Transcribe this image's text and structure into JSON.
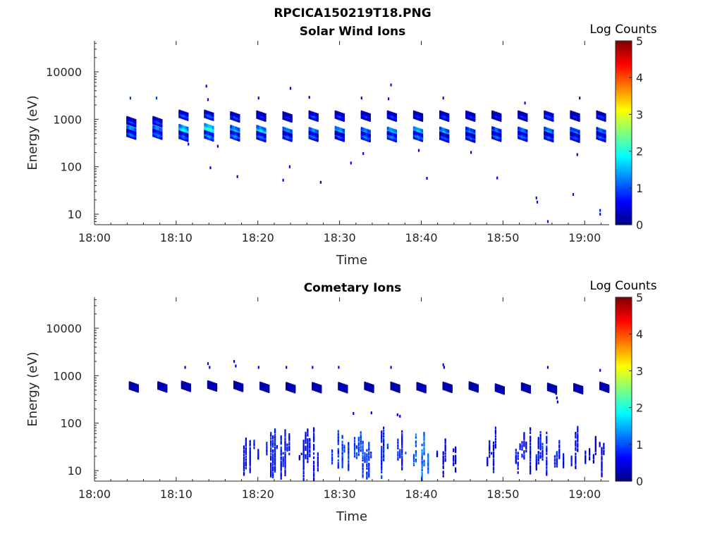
{
  "figure_title": "RPCICA150219T18.PNG",
  "colors": {
    "axis": "#262626",
    "colormap": [
      "#00007f",
      "#0000ff",
      "#007fff",
      "#00ffff",
      "#7fff7f",
      "#ffff00",
      "#ff7f00",
      "#ff0000",
      "#7f0000"
    ]
  },
  "chart_data": [
    {
      "type": "heatmap",
      "title": "Solar Wind Ions",
      "xlabel": "Time",
      "ylabel": "Energy (eV)",
      "x_tick_labels": [
        "18:00",
        "18:10",
        "18:20",
        "18:30",
        "18:40",
        "18:50",
        "19:00"
      ],
      "x_ticks_min": [
        0,
        10,
        20,
        30,
        40,
        50,
        60
      ],
      "xlim_min": [
        0,
        63
      ],
      "y_tick_labels": [
        "10",
        "100",
        "1000",
        "10000"
      ],
      "y_ticks": [
        10,
        100,
        1000,
        10000
      ],
      "ylim": [
        6,
        45000
      ],
      "y_scale": "log",
      "colorbar": {
        "label": "Log Counts",
        "range": [
          0,
          5
        ],
        "tick_labels": [
          "0",
          "1",
          "2",
          "3",
          "4",
          "5"
        ]
      },
      "scans": [
        {
          "t": 4.3,
          "bursts": [
            [
              950,
              1.1
            ],
            [
              620,
              2.2
            ],
            [
              520,
              1.4
            ]
          ]
        },
        {
          "t": 7.5,
          "bursts": [
            [
              950,
              1.2
            ],
            [
              620,
              2.1
            ],
            [
              520,
              1.5
            ]
          ]
        },
        {
          "t": 10.7,
          "bursts": [
            [
              1300,
              1.3
            ],
            [
              650,
              2.2
            ],
            [
              470,
              1.4
            ]
          ]
        },
        {
          "t": 13.8,
          "bursts": [
            [
              1300,
              1.3
            ],
            [
              680,
              2.4
            ],
            [
              480,
              1.6
            ]
          ]
        },
        {
          "t": 17.0,
          "bursts": [
            [
              1200,
              1.2
            ],
            [
              620,
              2.0
            ],
            [
              480,
              1.5
            ]
          ]
        },
        {
          "t": 20.2,
          "bursts": [
            [
              1250,
              1.0
            ],
            [
              620,
              2.1
            ],
            [
              460,
              1.4
            ]
          ]
        },
        {
          "t": 23.4,
          "bursts": [
            [
              1200,
              0.9
            ],
            [
              570,
              2.0
            ],
            [
              470,
              1.3
            ]
          ]
        },
        {
          "t": 26.6,
          "bursts": [
            [
              1250,
              1.2
            ],
            [
              560,
              2.1
            ],
            [
              470,
              1.4
            ]
          ]
        },
        {
          "t": 29.8,
          "bursts": [
            [
              1250,
              1.1
            ],
            [
              590,
              2.1
            ],
            [
              470,
              1.3
            ]
          ]
        },
        {
          "t": 33.0,
          "bursts": [
            [
              1250,
              1.0
            ],
            [
              560,
              2.0
            ],
            [
              460,
              1.5
            ]
          ]
        },
        {
          "t": 36.2,
          "bursts": [
            [
              1250,
              1.1
            ],
            [
              570,
              2.2
            ],
            [
              460,
              1.5
            ]
          ]
        },
        {
          "t": 39.4,
          "bursts": [
            [
              1250,
              0.9
            ],
            [
              580,
              2.3
            ],
            [
              470,
              1.5
            ]
          ]
        },
        {
          "t": 42.6,
          "bursts": [
            [
              1250,
              1.1
            ],
            [
              570,
              2.0
            ],
            [
              450,
              1.3
            ]
          ]
        },
        {
          "t": 45.8,
          "bursts": [
            [
              1250,
              1.0
            ],
            [
              570,
              1.8
            ],
            [
              450,
              1.3
            ]
          ]
        },
        {
          "t": 49.0,
          "bursts": [
            [
              1250,
              0.9
            ],
            [
              580,
              1.8
            ],
            [
              470,
              1.4
            ]
          ]
        },
        {
          "t": 52.2,
          "bursts": [
            [
              1250,
              1.0
            ],
            [
              570,
              1.9
            ],
            [
              470,
              1.4
            ]
          ]
        },
        {
          "t": 55.4,
          "bursts": [
            [
              1250,
              1.2
            ],
            [
              570,
              2.0
            ],
            [
              460,
              1.3
            ]
          ]
        },
        {
          "t": 58.6,
          "bursts": [
            [
              1250,
              0.9
            ],
            [
              560,
              1.8
            ],
            [
              450,
              1.2
            ]
          ]
        },
        {
          "t": 61.8,
          "bursts": [
            [
              1250,
              1.1
            ],
            [
              560,
              1.9
            ],
            [
              460,
              1.3
            ]
          ]
        }
      ],
      "sparse": [
        [
          4.3,
          2800,
          0.9
        ],
        [
          7.5,
          2800,
          0.9
        ],
        [
          13.6,
          5000,
          0.6
        ],
        [
          13.8,
          2600,
          0.6
        ],
        [
          23.9,
          4500,
          0.6
        ],
        [
          20.0,
          2800,
          0.6
        ],
        [
          26.2,
          2900,
          0.6
        ],
        [
          32.6,
          2800,
          0.6
        ],
        [
          36.2,
          5300,
          0.7
        ],
        [
          35.9,
          2700,
          0.6
        ],
        [
          42.6,
          2800,
          0.6
        ],
        [
          52.6,
          2200,
          0.6
        ],
        [
          59.3,
          2800,
          0.6
        ],
        [
          11.4,
          300,
          0.6
        ],
        [
          15.0,
          270,
          0.6
        ],
        [
          14.1,
          95,
          0.6
        ],
        [
          17.4,
          62,
          0.6
        ],
        [
          23.0,
          52,
          0.6
        ],
        [
          23.8,
          100,
          0.6
        ],
        [
          27.6,
          47,
          0.6
        ],
        [
          31.3,
          120,
          0.6
        ],
        [
          32.8,
          190,
          0.6
        ],
        [
          39.6,
          220,
          0.6
        ],
        [
          40.6,
          57,
          0.6
        ],
        [
          46.0,
          200,
          0.6
        ],
        [
          49.2,
          58,
          0.6
        ],
        [
          59.0,
          180,
          0.6
        ],
        [
          54.0,
          22,
          0.7
        ],
        [
          54.1,
          18,
          0.7
        ],
        [
          58.5,
          26,
          0.7
        ],
        [
          55.4,
          7,
          0.7
        ],
        [
          61.8,
          12,
          0.7
        ],
        [
          61.8,
          10,
          0.7
        ]
      ]
    },
    {
      "type": "heatmap",
      "title": "Cometary Ions",
      "xlabel": "Time",
      "ylabel": "Energy (eV)",
      "x_tick_labels": [
        "18:00",
        "18:10",
        "18:20",
        "18:30",
        "18:40",
        "18:50",
        "19:00"
      ],
      "x_ticks_min": [
        0,
        10,
        20,
        30,
        40,
        50,
        60
      ],
      "xlim_min": [
        0,
        63
      ],
      "y_tick_labels": [
        "10",
        "100",
        "1000",
        "10000"
      ],
      "y_ticks": [
        10,
        100,
        1000,
        10000
      ],
      "ylim": [
        6,
        45000
      ],
      "y_scale": "log",
      "colorbar": {
        "label": "Log Counts",
        "range": [
          0,
          5
        ],
        "tick_labels": [
          "0",
          "1",
          "2",
          "3",
          "4",
          "5"
        ]
      },
      "scans": [
        {
          "t": 4.6,
          "bursts": [
            [
              620,
              0.5
            ]
          ]
        },
        {
          "t": 8.1,
          "bursts": [
            [
              620,
              0.5
            ]
          ]
        },
        {
          "t": 11.0,
          "bursts": [
            [
              640,
              0.5
            ]
          ]
        },
        {
          "t": 14.2,
          "bursts": [
            [
              650,
              0.5
            ]
          ]
        },
        {
          "t": 17.4,
          "bursts": [
            [
              640,
              0.5
            ]
          ]
        },
        {
          "t": 20.6,
          "bursts": [
            [
              610,
              0.5
            ]
          ]
        },
        {
          "t": 23.8,
          "bursts": [
            [
              600,
              0.5
            ]
          ]
        },
        {
          "t": 27.0,
          "bursts": [
            [
              600,
              0.5
            ]
          ]
        },
        {
          "t": 30.2,
          "bursts": [
            [
              600,
              0.5
            ]
          ]
        },
        {
          "t": 33.4,
          "bursts": [
            [
              610,
              0.5
            ]
          ]
        },
        {
          "t": 36.6,
          "bursts": [
            [
              610,
              0.5
            ]
          ]
        },
        {
          "t": 39.8,
          "bursts": [
            [
              600,
              0.5
            ]
          ]
        },
        {
          "t": 43.0,
          "bursts": [
            [
              610,
              0.5
            ]
          ]
        },
        {
          "t": 46.2,
          "bursts": [
            [
              620,
              0.5
            ]
          ]
        },
        {
          "t": 49.4,
          "bursts": [
            [
              560,
              0.4
            ]
          ]
        },
        {
          "t": 52.6,
          "bursts": [
            [
              590,
              0.5
            ]
          ]
        },
        {
          "t": 55.8,
          "bursts": [
            [
              580,
              0.5
            ]
          ]
        },
        {
          "t": 59.0,
          "bursts": [
            [
              570,
              0.5
            ]
          ]
        },
        {
          "t": 62.2,
          "bursts": [
            [
              610,
              0.5
            ]
          ]
        }
      ],
      "sparse": [
        [
          11.0,
          1500,
          0.5
        ],
        [
          13.8,
          1800,
          0.5
        ],
        [
          14.0,
          1500,
          0.5
        ],
        [
          17.0,
          2000,
          0.5
        ],
        [
          17.2,
          1600,
          0.5
        ],
        [
          20.0,
          1500,
          0.5
        ],
        [
          23.4,
          1500,
          0.5
        ],
        [
          26.6,
          1500,
          0.5
        ],
        [
          29.8,
          1500,
          0.5
        ],
        [
          36.2,
          1500,
          0.5
        ],
        [
          42.6,
          1700,
          0.5
        ],
        [
          42.7,
          1500,
          0.5
        ],
        [
          55.4,
          1500,
          0.5
        ],
        [
          61.8,
          1300,
          0.5
        ],
        [
          56.4,
          420,
          0.5
        ],
        [
          56.5,
          340,
          0.5
        ],
        [
          56.6,
          280,
          0.5
        ],
        [
          31.6,
          160,
          0.5
        ],
        [
          33.8,
          165,
          0.5
        ],
        [
          37.0,
          150,
          0.5
        ],
        [
          37.3,
          140,
          0.5
        ]
      ],
      "low_energy_clusters": [
        [
          18.2,
          20.0,
          0.6
        ],
        [
          21.0,
          24.0,
          0.7
        ],
        [
          25.0,
          27.4,
          0.6
        ],
        [
          28.5,
          33.8,
          0.9
        ],
        [
          34.8,
          38.0,
          0.8
        ],
        [
          38.0,
          41.2,
          1.1
        ],
        [
          41.6,
          44.6,
          0.5
        ],
        [
          48.0,
          49.2,
          0.6
        ],
        [
          51.0,
          53.8,
          0.6
        ],
        [
          54.0,
          56.6,
          0.7
        ],
        [
          56.8,
          59.4,
          0.6
        ],
        [
          60.0,
          62.8,
          0.5
        ]
      ]
    }
  ]
}
